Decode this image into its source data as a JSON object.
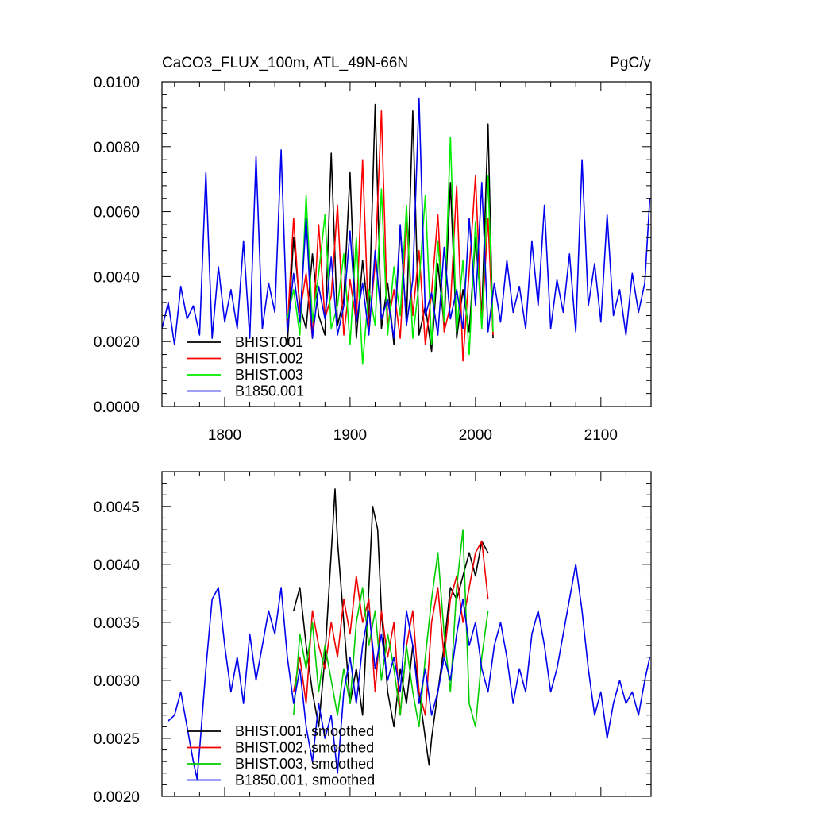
{
  "chart_data": [
    {
      "type": "line",
      "title_left": "CaCO3_FLUX_100m, ATL_49N-66N",
      "title_right": "PgC/y",
      "xlim": [
        1750,
        2140
      ],
      "ylim": [
        0.0,
        0.01
      ],
      "xticks": [
        1800,
        1900,
        2000,
        2100
      ],
      "yticks": [
        0.0,
        0.002,
        0.004,
        0.006,
        0.008,
        0.01
      ],
      "ytick_labels": [
        "0.0000",
        "0.0020",
        "0.0040",
        "0.0060",
        "0.0080",
        "0.0100"
      ],
      "xtick_labels": [
        "1800",
        "1900",
        "2000",
        "2100"
      ],
      "legend_position": "bottom-left",
      "series": [
        {
          "name": "BHIST.001",
          "color": "#000000",
          "x": [
            1850,
            1855,
            1860,
            1865,
            1870,
            1875,
            1880,
            1885,
            1890,
            1895,
            1900,
            1905,
            1910,
            1915,
            1920,
            1925,
            1930,
            1935,
            1940,
            1945,
            1950,
            1955,
            1960,
            1965,
            1970,
            1975,
            1980,
            1985,
            1990,
            1995,
            2000,
            2005,
            2010,
            2014
          ],
          "y": [
            0.0019,
            0.0052,
            0.0031,
            0.0024,
            0.0047,
            0.0028,
            0.0022,
            0.0078,
            0.0025,
            0.0033,
            0.0072,
            0.0021,
            0.0045,
            0.0027,
            0.0093,
            0.0024,
            0.0038,
            0.0019,
            0.0055,
            0.0026,
            0.0091,
            0.0022,
            0.0031,
            0.0017,
            0.0044,
            0.0025,
            0.0069,
            0.0021,
            0.0036,
            0.0023,
            0.0052,
            0.0028,
            0.0087,
            0.0021
          ]
        },
        {
          "name": "BHIST.002",
          "color": "#ff0000",
          "x": [
            1850,
            1855,
            1860,
            1865,
            1870,
            1875,
            1880,
            1885,
            1890,
            1895,
            1900,
            1905,
            1910,
            1915,
            1920,
            1925,
            1930,
            1935,
            1940,
            1945,
            1950,
            1955,
            1960,
            1965,
            1970,
            1975,
            1980,
            1985,
            1990,
            1995,
            2000,
            2005,
            2010,
            2014
          ],
          "y": [
            0.0024,
            0.0058,
            0.0029,
            0.0041,
            0.0021,
            0.0056,
            0.0027,
            0.0034,
            0.0062,
            0.0022,
            0.0039,
            0.0026,
            0.0076,
            0.0023,
            0.0044,
            0.0091,
            0.0025,
            0.0036,
            0.0021,
            0.0057,
            0.0028,
            0.0048,
            0.0019,
            0.0035,
            0.0059,
            0.0023,
            0.0031,
            0.0068,
            0.0014,
            0.0042,
            0.0071,
            0.0025,
            0.0058,
            0.0022
          ]
        },
        {
          "name": "BHIST.003",
          "color": "#00ee00",
          "x": [
            1850,
            1855,
            1860,
            1865,
            1870,
            1875,
            1880,
            1885,
            1890,
            1895,
            1900,
            1905,
            1910,
            1915,
            1920,
            1925,
            1930,
            1935,
            1940,
            1945,
            1950,
            1955,
            1960,
            1965,
            1970,
            1975,
            1980,
            1985,
            1990,
            1995,
            2000,
            2005,
            2010,
            2014
          ],
          "y": [
            0.0027,
            0.0036,
            0.0022,
            0.0065,
            0.0026,
            0.0041,
            0.0059,
            0.0024,
            0.0031,
            0.0047,
            0.0019,
            0.0052,
            0.0013,
            0.0036,
            0.0025,
            0.0067,
            0.0022,
            0.0043,
            0.0028,
            0.0062,
            0.0021,
            0.0038,
            0.0065,
            0.0019,
            0.0051,
            0.0026,
            0.0083,
            0.0023,
            0.0045,
            0.0016,
            0.0057,
            0.0024,
            0.0071,
            0.0023
          ]
        },
        {
          "name": "B1850.001",
          "color": "#0000ee",
          "x": [
            1750,
            1755,
            1760,
            1765,
            1770,
            1775,
            1780,
            1785,
            1790,
            1795,
            1800,
            1805,
            1810,
            1815,
            1820,
            1825,
            1830,
            1835,
            1840,
            1845,
            1850,
            1855,
            1860,
            1865,
            1870,
            1875,
            1880,
            1885,
            1890,
            1895,
            1900,
            1905,
            1910,
            1915,
            1920,
            1925,
            1930,
            1935,
            1940,
            1945,
            1950,
            1955,
            1960,
            1965,
            1970,
            1975,
            1980,
            1985,
            1990,
            1995,
            2000,
            2005,
            2010,
            2015,
            2020,
            2025,
            2030,
            2035,
            2040,
            2045,
            2050,
            2055,
            2060,
            2065,
            2070,
            2075,
            2080,
            2085,
            2090,
            2095,
            2100,
            2105,
            2110,
            2115,
            2120,
            2125,
            2130,
            2135,
            2139
          ],
          "y": [
            0.0024,
            0.0032,
            0.0019,
            0.0037,
            0.0027,
            0.0031,
            0.0022,
            0.0072,
            0.0021,
            0.0043,
            0.0026,
            0.0036,
            0.0024,
            0.0051,
            0.0021,
            0.0077,
            0.0024,
            0.0038,
            0.0029,
            0.0079,
            0.0023,
            0.0041,
            0.0026,
            0.0058,
            0.0021,
            0.0037,
            0.0027,
            0.0046,
            0.0022,
            0.0031,
            0.0054,
            0.0026,
            0.0038,
            0.0022,
            0.0048,
            0.0027,
            0.0033,
            0.0021,
            0.0056,
            0.0025,
            0.0039,
            0.0095,
            0.0028,
            0.0035,
            0.0022,
            0.0049,
            0.0027,
            0.0036,
            0.0024,
            0.0058,
            0.0031,
            0.0069,
            0.0023,
            0.0038,
            0.0026,
            0.0045,
            0.0029,
            0.0037,
            0.0024,
            0.0051,
            0.0031,
            0.0062,
            0.0024,
            0.0039,
            0.0029,
            0.0047,
            0.0023,
            0.0076,
            0.0031,
            0.0044,
            0.0026,
            0.0059,
            0.0028,
            0.0036,
            0.0022,
            0.0041,
            0.0029,
            0.0038,
            0.0064
          ]
        }
      ]
    },
    {
      "type": "line",
      "xlim": [
        1750,
        2140
      ],
      "ylim": [
        0.002,
        0.0048
      ],
      "xticks": [
        1800,
        1900,
        2000,
        2100
      ],
      "yticks": [
        0.002,
        0.0025,
        0.003,
        0.0035,
        0.004,
        0.0045
      ],
      "ytick_labels": [
        "0.0020",
        "0.0025",
        "0.0030",
        "0.0035",
        "0.0040",
        "0.0045"
      ],
      "legend_position": "bottom-left",
      "series": [
        {
          "name": "BHIST.001, smoothed",
          "color": "#000000",
          "x": [
            1855,
            1860,
            1865,
            1870,
            1875,
            1880,
            1885,
            1888,
            1890,
            1895,
            1900,
            1905,
            1910,
            1915,
            1918,
            1922,
            1925,
            1930,
            1935,
            1940,
            1945,
            1950,
            1955,
            1960,
            1963,
            1965,
            1970,
            1975,
            1980,
            1985,
            1990,
            1995,
            2000,
            2005,
            2010
          ],
          "y": [
            0.0036,
            0.0038,
            0.0033,
            0.0029,
            0.0026,
            0.0032,
            0.0041,
            0.00465,
            0.0042,
            0.0035,
            0.0028,
            0.0031,
            0.0027,
            0.0038,
            0.0045,
            0.0043,
            0.0036,
            0.0029,
            0.0026,
            0.0031,
            0.0028,
            0.0033,
            0.0029,
            0.0025,
            0.00227,
            0.0025,
            0.0029,
            0.0033,
            0.0038,
            0.0037,
            0.0039,
            0.0041,
            0.0039,
            0.0042,
            0.0041
          ]
        },
        {
          "name": "BHIST.002, smoothed",
          "color": "#ee0000",
          "x": [
            1855,
            1860,
            1865,
            1870,
            1875,
            1880,
            1885,
            1890,
            1895,
            1900,
            1905,
            1910,
            1915,
            1920,
            1925,
            1930,
            1935,
            1940,
            1945,
            1950,
            1955,
            1960,
            1965,
            1970,
            1975,
            1980,
            1985,
            1990,
            1995,
            2000,
            2005,
            2010
          ],
          "y": [
            0.0029,
            0.0032,
            0.0028,
            0.0036,
            0.0033,
            0.0031,
            0.0035,
            0.0032,
            0.0037,
            0.0034,
            0.0039,
            0.0035,
            0.0037,
            0.0029,
            0.0036,
            0.0032,
            0.0035,
            0.0027,
            0.0033,
            0.0036,
            0.0029,
            0.0027,
            0.0035,
            0.0038,
            0.0032,
            0.0037,
            0.0039,
            0.0035,
            0.0038,
            0.0041,
            0.0042,
            0.0037
          ]
        },
        {
          "name": "BHIST.003, smoothed",
          "color": "#00cc00",
          "x": [
            1855,
            1860,
            1865,
            1870,
            1875,
            1880,
            1885,
            1890,
            1895,
            1900,
            1905,
            1910,
            1915,
            1920,
            1925,
            1930,
            1935,
            1940,
            1945,
            1950,
            1955,
            1960,
            1965,
            1970,
            1975,
            1980,
            1985,
            1990,
            1995,
            2000,
            2005,
            2010
          ],
          "y": [
            0.0027,
            0.0034,
            0.0031,
            0.0035,
            0.0029,
            0.0033,
            0.003,
            0.0027,
            0.0031,
            0.0028,
            0.0035,
            0.0038,
            0.0033,
            0.0036,
            0.003,
            0.0034,
            0.0031,
            0.0027,
            0.0033,
            0.0029,
            0.0026,
            0.0032,
            0.0037,
            0.0041,
            0.0034,
            0.0029,
            0.0038,
            0.0043,
            0.0028,
            0.0026,
            0.0032,
            0.0036
          ]
        },
        {
          "name": "B1850.001, smoothed",
          "color": "#0000ee",
          "x": [
            1755,
            1760,
            1765,
            1770,
            1775,
            1778,
            1780,
            1785,
            1790,
            1795,
            1800,
            1805,
            1810,
            1815,
            1820,
            1825,
            1830,
            1835,
            1840,
            1845,
            1850,
            1855,
            1860,
            1865,
            1870,
            1875,
            1880,
            1885,
            1890,
            1895,
            1900,
            1905,
            1910,
            1915,
            1920,
            1925,
            1930,
            1935,
            1940,
            1945,
            1950,
            1955,
            1960,
            1965,
            1970,
            1975,
            1980,
            1985,
            1990,
            1995,
            2000,
            2005,
            2010,
            2015,
            2020,
            2025,
            2030,
            2035,
            2040,
            2045,
            2050,
            2055,
            2060,
            2065,
            2070,
            2075,
            2080,
            2085,
            2090,
            2095,
            2100,
            2105,
            2110,
            2115,
            2120,
            2125,
            2130,
            2135,
            2139
          ],
          "y": [
            0.00265,
            0.0027,
            0.0029,
            0.0026,
            0.0023,
            0.00215,
            0.0024,
            0.0031,
            0.0037,
            0.0038,
            0.0033,
            0.0029,
            0.0032,
            0.0028,
            0.0034,
            0.003,
            0.0033,
            0.0036,
            0.0034,
            0.0038,
            0.0032,
            0.0028,
            0.0031,
            0.0026,
            0.0023,
            0.0028,
            0.0025,
            0.0027,
            0.0022,
            0.0029,
            0.0032,
            0.0028,
            0.0033,
            0.0036,
            0.0031,
            0.0034,
            0.003,
            0.0032,
            0.0029,
            0.0036,
            0.0033,
            0.0028,
            0.0031,
            0.0027,
            0.0029,
            0.0032,
            0.003,
            0.0034,
            0.0037,
            0.0033,
            0.0035,
            0.0031,
            0.0029,
            0.0033,
            0.0035,
            0.0032,
            0.0028,
            0.0031,
            0.0029,
            0.0034,
            0.0036,
            0.0033,
            0.0029,
            0.0031,
            0.0034,
            0.0037,
            0.004,
            0.0036,
            0.0031,
            0.0027,
            0.0029,
            0.0025,
            0.0028,
            0.003,
            0.0028,
            0.0029,
            0.0027,
            0.003,
            0.0032
          ]
        }
      ]
    }
  ]
}
